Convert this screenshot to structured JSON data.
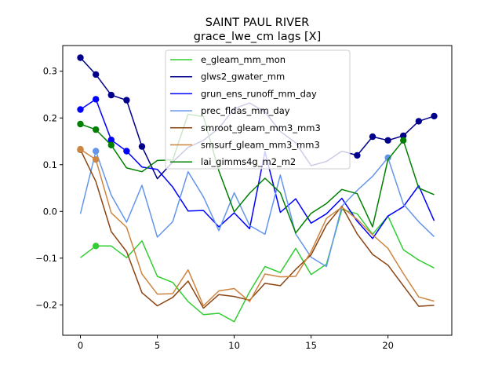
{
  "chart_data": {
    "type": "line",
    "title": "SAINT PAUL RIVER",
    "subtitle": "grace_lwe_cm lags [X]",
    "xlabel": "",
    "ylabel": "",
    "xlim": [
      -1.15,
      24.15
    ],
    "ylim": [
      -0.265,
      0.355
    ],
    "xticks": [
      0,
      5,
      10,
      15,
      20
    ],
    "yticks": [
      -0.2,
      -0.1,
      0.0,
      0.1,
      0.2,
      0.3
    ],
    "ytick_labels": [
      "−0.2",
      "−0.1",
      "0.0",
      "0.1",
      "0.2",
      "0.3"
    ],
    "legend_position": "top-center",
    "grid": false,
    "x": [
      0,
      1,
      2,
      3,
      4,
      5,
      6,
      7,
      8,
      9,
      10,
      11,
      12,
      13,
      14,
      15,
      16,
      17,
      18,
      19,
      20,
      21,
      22,
      23
    ],
    "series": [
      {
        "name": "e_gleam_mm_mon",
        "color": "#32cd32",
        "values": [
          -0.099,
          -0.074,
          -0.074,
          -0.099,
          -0.063,
          -0.139,
          -0.152,
          -0.193,
          -0.221,
          -0.218,
          -0.236,
          -0.172,
          -0.118,
          -0.131,
          -0.079,
          -0.135,
          -0.113,
          0.004,
          -0.005,
          -0.049,
          -0.01,
          -0.082,
          -0.104,
          -0.121
        ],
        "markers": [
          1
        ]
      },
      {
        "name": "glws2_gwater_mm",
        "color": "#00008b",
        "values": [
          0.329,
          0.293,
          0.249,
          0.238,
          0.139,
          0.07,
          0.106,
          0.137,
          0.152,
          0.178,
          0.22,
          0.232,
          0.213,
          0.171,
          0.147,
          0.098,
          0.107,
          0.129,
          0.12,
          0.16,
          0.152,
          0.162,
          0.193,
          0.204
        ],
        "markers": [
          0,
          1,
          2,
          3,
          4,
          18,
          19,
          20,
          21,
          22,
          23
        ]
      },
      {
        "name": "grun_ens_runoff_mm_day",
        "color": "#0000ff",
        "values": [
          0.218,
          0.24,
          0.153,
          0.129,
          0.095,
          0.09,
          0.052,
          0.001,
          0.002,
          -0.033,
          -0.003,
          -0.037,
          0.128,
          -0.002,
          0.027,
          -0.025,
          -0.005,
          0.028,
          -0.021,
          -0.058,
          -0.01,
          0.01,
          0.055,
          -0.02
        ],
        "markers": [
          0,
          1,
          2,
          3
        ]
      },
      {
        "name": "prec_fldas_mm_day",
        "color": "#6495ed",
        "values": [
          -0.005,
          0.129,
          0.035,
          -0.023,
          0.056,
          -0.055,
          -0.022,
          0.085,
          0.031,
          -0.041,
          0.04,
          -0.03,
          -0.049,
          0.078,
          -0.048,
          -0.098,
          -0.118,
          0.011,
          0.045,
          0.075,
          0.115,
          0.016,
          -0.022,
          -0.054
        ],
        "markers": [
          1,
          20
        ]
      },
      {
        "name": "smroot_gleam_mm3_mm3",
        "color": "#8b4513",
        "values": [
          0.132,
          0.064,
          -0.043,
          -0.086,
          -0.174,
          -0.202,
          -0.184,
          -0.149,
          -0.207,
          -0.178,
          -0.182,
          -0.19,
          -0.154,
          -0.159,
          -0.124,
          -0.093,
          -0.029,
          0.011,
          -0.048,
          -0.092,
          -0.115,
          -0.159,
          -0.203,
          -0.201
        ],
        "markers": [
          0
        ]
      },
      {
        "name": "smsurf_gleam_mm3_mm3",
        "color": "#cd853f",
        "values": [
          0.133,
          0.111,
          -0.003,
          -0.034,
          -0.134,
          -0.177,
          -0.176,
          -0.125,
          -0.202,
          -0.17,
          -0.165,
          -0.193,
          -0.134,
          -0.14,
          -0.139,
          -0.086,
          -0.015,
          0.009,
          -0.017,
          -0.05,
          -0.079,
          -0.133,
          -0.183,
          -0.192
        ],
        "markers": [
          0,
          1
        ]
      },
      {
        "name": "lai_gimms4g_m2_m2",
        "color": "#008000",
        "values": [
          0.187,
          0.175,
          0.142,
          0.093,
          0.085,
          0.109,
          0.11,
          0.208,
          0.203,
          0.087,
          -0.001,
          0.039,
          0.071,
          0.04,
          -0.046,
          -0.004,
          0.017,
          0.047,
          0.038,
          -0.033,
          0.111,
          0.152,
          0.05,
          0.036
        ],
        "markers": [
          0,
          1,
          2,
          21
        ]
      }
    ]
  }
}
